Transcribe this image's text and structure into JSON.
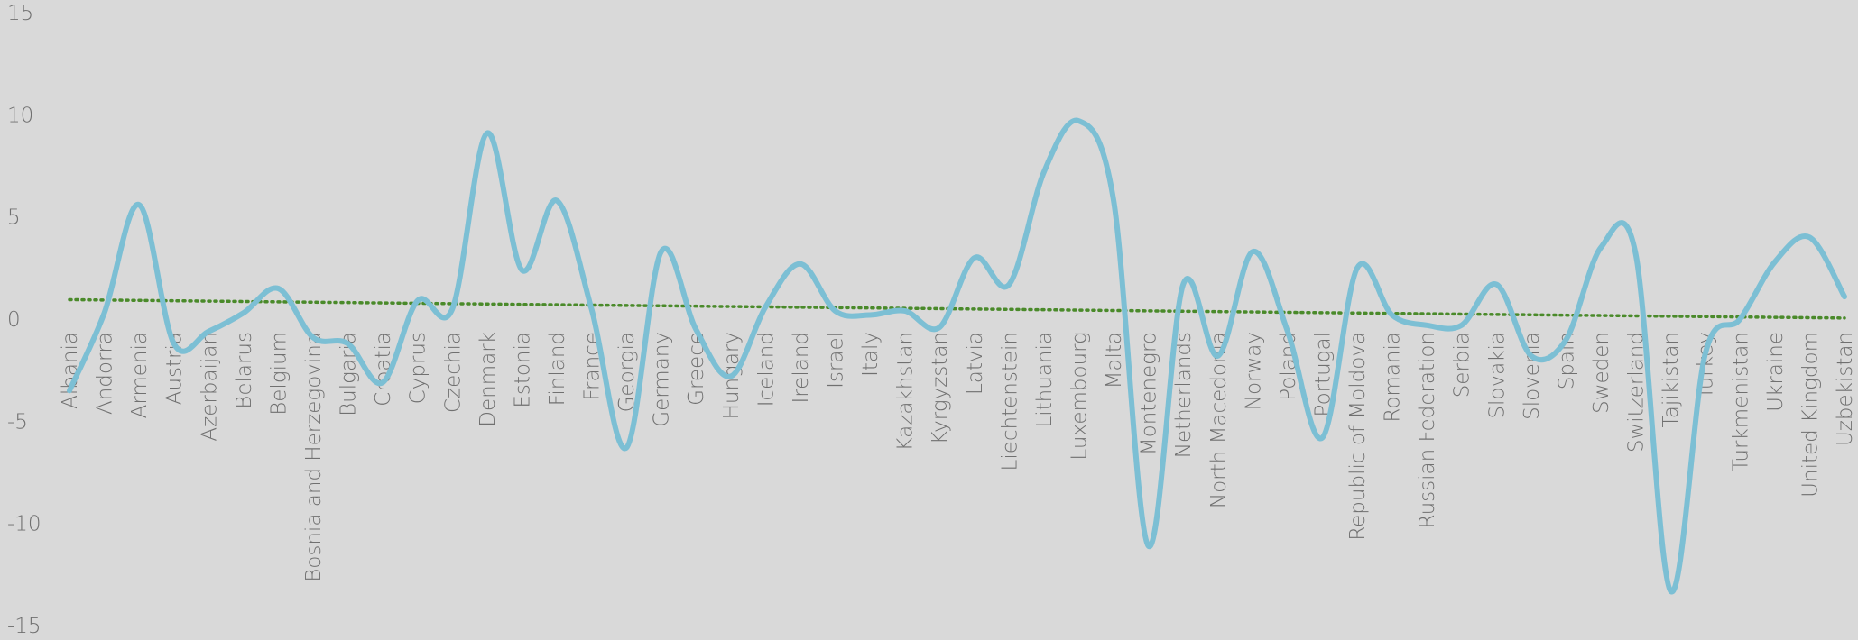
{
  "chart_data": {
    "type": "line",
    "title": "",
    "xlabel": "",
    "ylabel": "",
    "ylim": [
      -15,
      15
    ],
    "yticks": [
      15,
      10,
      5,
      0,
      -5,
      -10,
      -15
    ],
    "grid": false,
    "legend": "none",
    "categories": [
      "Albania",
      "Andorra",
      "Armenia",
      "Austria",
      "Azerbaijan",
      "Belarus",
      "Belgium",
      "Bosnia and Herzegovina",
      "Bulgaria",
      "Croatia",
      "Cyprus",
      "Czechia",
      "Denmark",
      "Estonia",
      "Finland",
      "France",
      "Georgia",
      "Germany",
      "Greece",
      "Hungary",
      "Iceland",
      "Ireland",
      "Israel",
      "Italy",
      "Kazakhstan",
      "Kyrgyzstan",
      "Latvia",
      "Liechtenstein",
      "Lithuania",
      "Luxembourg",
      "Malta",
      "Montenegro",
      "Netherlands",
      "North Macedonia",
      "Norway",
      "Poland",
      "Portugal",
      "Republic of Moldova",
      "Romania",
      "Russian Federation",
      "Serbia",
      "Slovakia",
      "Slovenia",
      "Spain",
      "Sweden",
      "Switzerland",
      "Tajikistan",
      "Turkey",
      "Turkmenistan",
      "Ukraine",
      "United Kingdom",
      "Uzbekistan"
    ],
    "series": [
      {
        "style": "smooth-line",
        "color": "#7cbfd4",
        "values": [
          -3.5,
          0.3,
          5.6,
          -1.2,
          -0.6,
          0.3,
          1.5,
          -0.9,
          -1.2,
          -3.1,
          0.9,
          0.5,
          9.1,
          2.4,
          5.8,
          0.5,
          -6.3,
          3.3,
          -0.5,
          -2.8,
          0.6,
          2.7,
          0.4,
          0.2,
          0.4,
          -0.4,
          3.0,
          1.7,
          7.2,
          9.7,
          5.8,
          -11.1,
          1.7,
          -1.8,
          3.3,
          -0.6,
          -5.8,
          2.5,
          0.2,
          -0.3,
          -0.3,
          1.7,
          -1.8,
          -1.0,
          3.5,
          3.2,
          -13.3,
          -1.7,
          0.0,
          2.8,
          4.0,
          1.1
        ]
      },
      {
        "style": "dotted-trendline",
        "color": "#4a8a2a",
        "start": 0.95,
        "end": 0.05
      }
    ]
  }
}
